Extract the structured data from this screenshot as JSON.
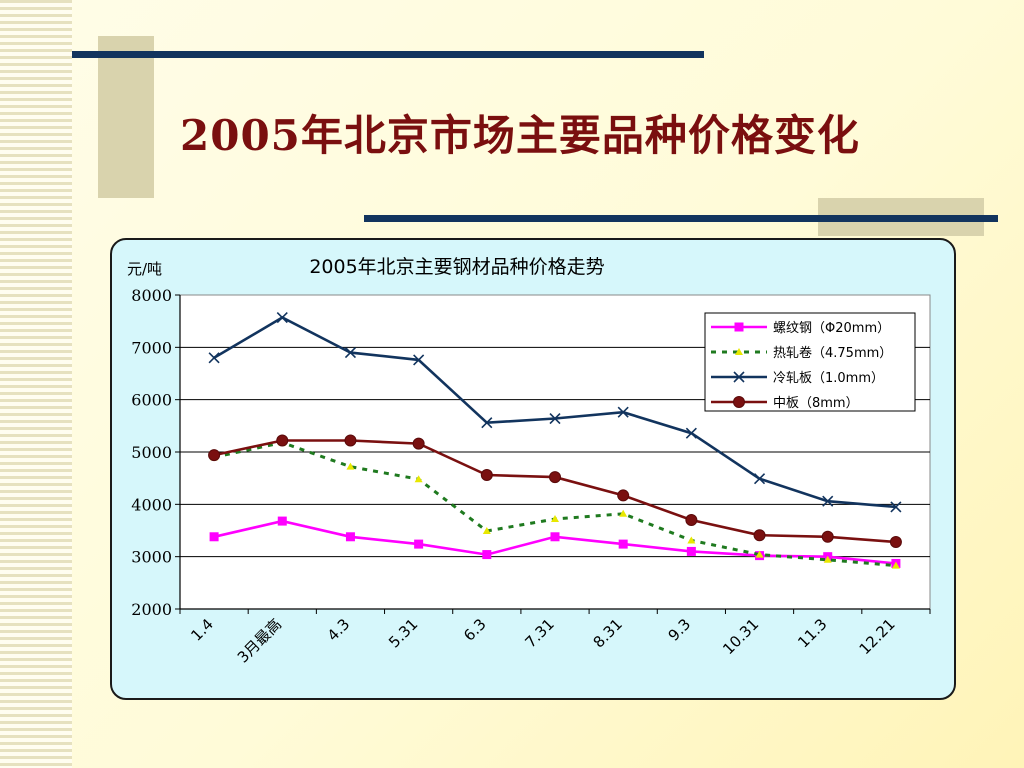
{
  "slide": {
    "title": "2005年北京市场主要品种价格变化"
  },
  "chart_data": {
    "type": "line",
    "title": "2005年北京主要钢材品种价格走势",
    "ylabel": "元/吨",
    "xlabel": "",
    "ylim": [
      2000,
      8000
    ],
    "yticks": [
      "8000",
      "7000",
      "6000",
      "5000",
      "4000",
      "3000",
      "2000"
    ],
    "grid": "horizontal",
    "legend_position": "top-right",
    "categories": [
      "1.4",
      "3月最高",
      "4.3",
      "5.31",
      "6.3",
      "7.31",
      "8.31",
      "9.3",
      "10.31",
      "11.3",
      "12.21"
    ],
    "series": [
      {
        "name": "螺纹钢（Φ20mm）",
        "color": "#ff00ff",
        "marker": "square",
        "line": "solid",
        "values": [
          3380,
          3680,
          3380,
          3240,
          3040,
          3380,
          3240,
          3100,
          3020,
          3000,
          2870
        ]
      },
      {
        "name": "热轧卷（4.75mm）",
        "color": "#1f7a1f",
        "marker": "triangle",
        "marker_color": "#e8e800",
        "line": "dotted",
        "values": [
          4900,
          5180,
          4720,
          4480,
          3490,
          3720,
          3820,
          3310,
          3040,
          2940,
          2830
        ]
      },
      {
        "name": "冷轧板（1.0mm）",
        "color": "#12345e",
        "marker": "x",
        "line": "solid",
        "values": [
          6800,
          7570,
          6900,
          6760,
          5560,
          5640,
          5760,
          5360,
          4490,
          4060,
          3950
        ]
      },
      {
        "name": "中板（8mm）",
        "color": "#7a1010",
        "marker": "circle",
        "line": "solid",
        "values": [
          4940,
          5220,
          5220,
          5160,
          4560,
          4520,
          4170,
          3700,
          3410,
          3380,
          3280
        ]
      }
    ]
  }
}
